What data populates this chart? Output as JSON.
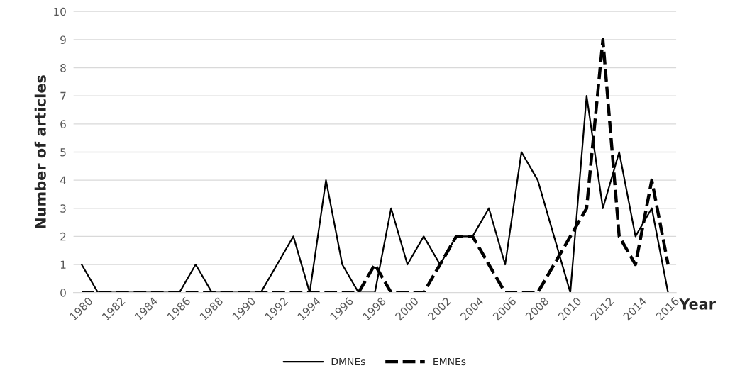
{
  "chart_data": {
    "type": "line",
    "xlabel": "Year",
    "ylabel": "Number of articles",
    "categories": [
      "1980",
      null,
      "1982",
      null,
      "1984",
      null,
      "1986",
      null,
      "1988",
      null,
      "1990",
      null,
      "1992",
      null,
      "1994",
      null,
      "1996",
      null,
      "1998",
      null,
      "2000",
      null,
      "2002",
      null,
      "2004",
      null,
      "2006",
      null,
      "2008",
      null,
      "2010",
      null,
      "2012",
      null,
      "2014",
      null,
      "2016"
    ],
    "series": [
      {
        "name": "DMNEs",
        "color": "#000000",
        "line_style": "solid",
        "values": [
          1,
          0,
          0,
          0,
          0,
          0,
          0,
          1,
          0,
          0,
          0,
          0,
          1,
          2,
          0,
          4,
          1,
          0,
          0,
          3,
          1,
          2,
          1,
          2,
          2,
          3,
          1,
          5,
          4,
          2,
          0,
          7,
          3,
          5,
          2,
          3,
          0
        ]
      },
      {
        "name": "EMNEs",
        "color": "#000000",
        "line_style": "dashed",
        "values": [
          0,
          0,
          0,
          0,
          0,
          0,
          0,
          0,
          0,
          0,
          0,
          0,
          0,
          0,
          0,
          0,
          0,
          0,
          1,
          0,
          0,
          0,
          1,
          2,
          2,
          1,
          0,
          0,
          0,
          1,
          2,
          3,
          9,
          2,
          1,
          4,
          1
        ]
      }
    ],
    "ylim": [
      0,
      10
    ],
    "yticks": [
      0,
      1,
      2,
      3,
      4,
      5,
      6,
      7,
      8,
      9,
      10
    ],
    "grid": "y",
    "legend": "bottom"
  }
}
